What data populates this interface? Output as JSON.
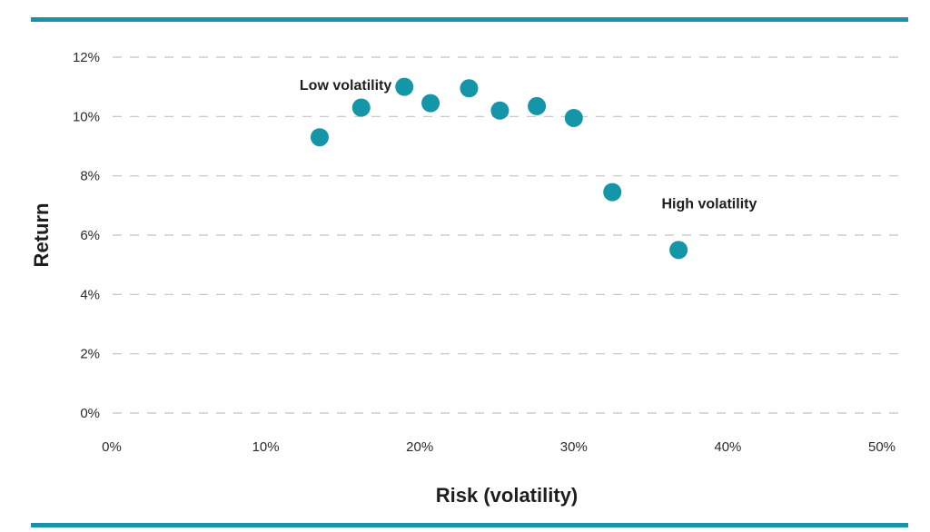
{
  "chart_data": {
    "type": "scatter",
    "xlabel": "Risk (volatility)",
    "ylabel": "Return",
    "xlim": [
      0,
      50
    ],
    "ylim": [
      0,
      12
    ],
    "x_ticks": [
      "0%",
      "10%",
      "20%",
      "30%",
      "40%",
      "50%"
    ],
    "y_ticks": [
      "0%",
      "2%",
      "4%",
      "6%",
      "8%",
      "10%",
      "12%"
    ],
    "grid": "horizontal dashed",
    "series": [
      {
        "points": [
          {
            "x": 13.5,
            "y": 9.3
          },
          {
            "x": 16.2,
            "y": 10.3
          },
          {
            "x": 19.0,
            "y": 11.0
          },
          {
            "x": 20.7,
            "y": 10.45
          },
          {
            "x": 23.2,
            "y": 10.95
          },
          {
            "x": 25.2,
            "y": 10.2
          },
          {
            "x": 27.6,
            "y": 10.35
          },
          {
            "x": 30.0,
            "y": 9.95
          },
          {
            "x": 32.5,
            "y": 7.45
          },
          {
            "x": 36.8,
            "y": 5.5
          }
        ]
      }
    ],
    "annotations": [
      {
        "text": "Low volatility",
        "x": 12.2,
        "y": 10.9
      },
      {
        "text": "High volatility",
        "x": 35.7,
        "y": 6.9
      }
    ],
    "colors": {
      "marker": "#1595a8",
      "frame_rule": "#1a93a8"
    }
  }
}
